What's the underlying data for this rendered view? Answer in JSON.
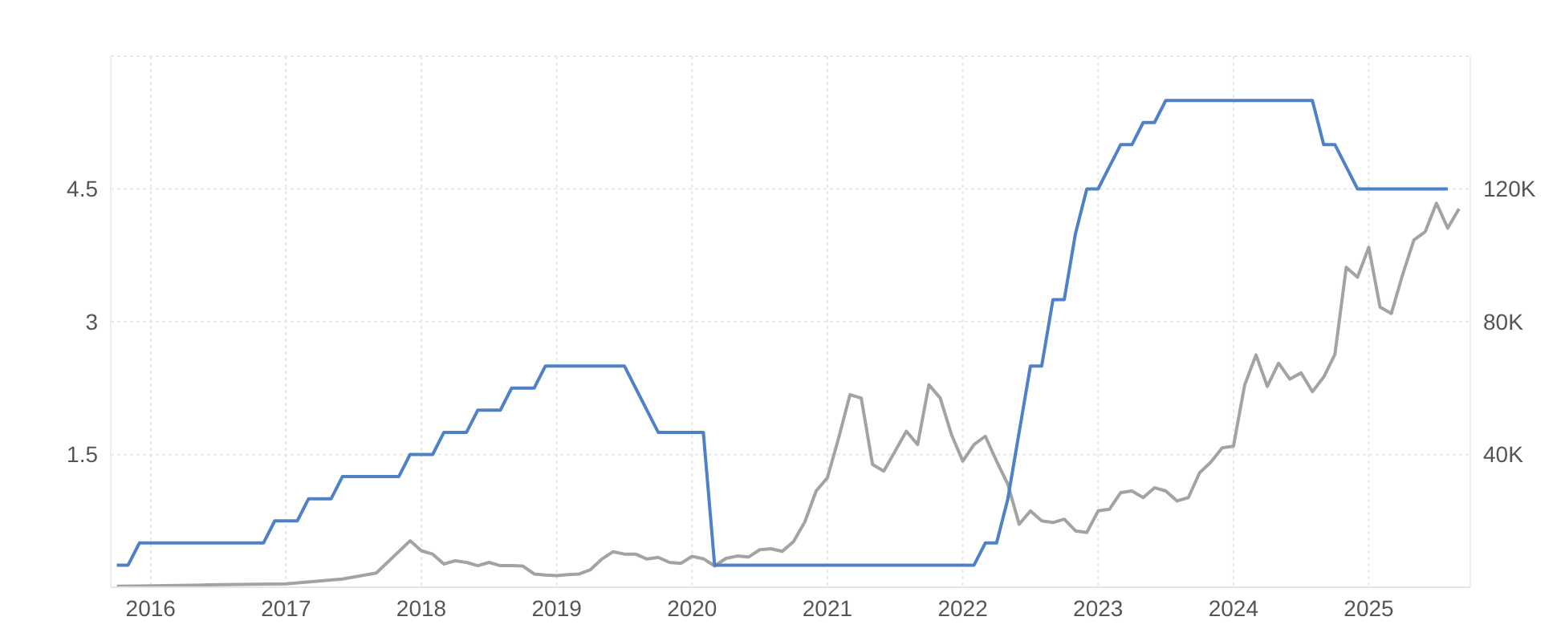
{
  "chart_data": {
    "type": "line",
    "xlim": [
      "2015-09-15",
      "2025-10-01"
    ],
    "xticks": [
      "2016",
      "2017",
      "2018",
      "2019",
      "2020",
      "2021",
      "2022",
      "2023",
      "2024",
      "2025"
    ],
    "ylim": [
      0,
      6
    ],
    "yticks": [
      1.5,
      3,
      4.5
    ],
    "y2lim": [
      0,
      160000
    ],
    "y2ticks": [
      {
        "value": 40000,
        "label": "40K"
      },
      {
        "value": 80000,
        "label": "80K"
      },
      {
        "value": 120000,
        "label": "120K"
      }
    ],
    "grid": true,
    "marker": "none",
    "series": [
      {
        "color": "#a3a3a3",
        "axis": "y2",
        "x": [
          "2015-10",
          "2016-01",
          "2016-06",
          "2017-01",
          "2017-06",
          "2017-09",
          "2017-12",
          "2018-01",
          "2018-02",
          "2018-03",
          "2018-04",
          "2018-05",
          "2018-06",
          "2018-07",
          "2018-08",
          "2018-09",
          "2018-10",
          "2018-11",
          "2018-12",
          "2019-01",
          "2019-02",
          "2019-03",
          "2019-04",
          "2019-05",
          "2019-06",
          "2019-07",
          "2019-08",
          "2019-09",
          "2019-10",
          "2019-11",
          "2019-12",
          "2020-01",
          "2020-02",
          "2020-03",
          "2020-04",
          "2020-05",
          "2020-06",
          "2020-07",
          "2020-08",
          "2020-09",
          "2020-10",
          "2020-11",
          "2020-12",
          "2021-01",
          "2021-02",
          "2021-03",
          "2021-04",
          "2021-05",
          "2021-06",
          "2021-07",
          "2021-08",
          "2021-09",
          "2021-10",
          "2021-11",
          "2021-12",
          "2022-01",
          "2022-02",
          "2022-03",
          "2022-04",
          "2022-05",
          "2022-06",
          "2022-07",
          "2022-08",
          "2022-09",
          "2022-10",
          "2022-11",
          "2022-12",
          "2023-01",
          "2023-02",
          "2023-03",
          "2023-04",
          "2023-05",
          "2023-06",
          "2023-07",
          "2023-08",
          "2023-09",
          "2023-10",
          "2023-11",
          "2023-12",
          "2024-01",
          "2024-02",
          "2024-03",
          "2024-04",
          "2024-05",
          "2024-06",
          "2024-07",
          "2024-08",
          "2024-09",
          "2024-10",
          "2024-11",
          "2024-12",
          "2025-01",
          "2025-02",
          "2025-03",
          "2025-04",
          "2025-05",
          "2025-06",
          "2025-07",
          "2025-08",
          "2025-09"
        ],
        "values": [
          300,
          400,
          700,
          1000,
          2500,
          4300,
          14000,
          11000,
          10000,
          7000,
          8000,
          7500,
          6500,
          7500,
          6500,
          6500,
          6400,
          4000,
          3700,
          3500,
          3800,
          4000,
          5300,
          8500,
          10700,
          10000,
          10000,
          8500,
          9000,
          7500,
          7200,
          9300,
          8600,
          6400,
          8700,
          9400,
          9100,
          11300,
          11600,
          10800,
          13800,
          19700,
          29000,
          33000,
          45000,
          58000,
          57000,
          37000,
          35000,
          41000,
          47000,
          43000,
          61000,
          57000,
          46000,
          38000,
          43000,
          45500,
          38000,
          31000,
          19000,
          23000,
          20000,
          19500,
          20500,
          17000,
          16500,
          23000,
          23500,
          28500,
          29000,
          27000,
          30000,
          29000,
          26000,
          27000,
          34500,
          37700,
          42000,
          42500,
          61000,
          70000,
          60500,
          67500,
          62700,
          64600,
          58900,
          63300,
          70200,
          96400,
          93400,
          102400,
          84400,
          82500,
          94200,
          104600,
          107100,
          115700,
          108200,
          114000
        ]
      },
      {
        "color": "#4f81c7",
        "x": [
          "2015-10",
          "2015-11",
          "2015-12",
          "2016-11",
          "2016-12",
          "2017-02",
          "2017-03",
          "2017-05",
          "2017-06",
          "2017-11",
          "2017-12",
          "2018-02",
          "2018-03",
          "2018-05",
          "2018-06",
          "2018-08",
          "2018-09",
          "2018-11",
          "2018-12",
          "2019-07",
          "2019-08",
          "2019-09",
          "2019-10",
          "2020-02",
          "2020-03",
          "2022-02",
          "2022-03",
          "2022-04",
          "2022-05",
          "2022-06",
          "2022-07",
          "2022-08",
          "2022-09",
          "2022-10",
          "2022-11",
          "2022-12",
          "2023-01",
          "2023-02",
          "2023-03",
          "2023-04",
          "2023-05",
          "2023-06",
          "2023-07",
          "2024-08",
          "2024-09",
          "2024-10",
          "2024-11",
          "2024-12",
          "2025-08"
        ],
        "values": [
          0.25,
          0.25,
          0.5,
          0.5,
          0.75,
          0.75,
          1.0,
          1.0,
          1.25,
          1.25,
          1.5,
          1.5,
          1.75,
          1.75,
          2.0,
          2.0,
          2.25,
          2.25,
          2.5,
          2.5,
          2.25,
          2.0,
          1.75,
          1.75,
          0.25,
          0.25,
          0.5,
          0.5,
          1.0,
          1.75,
          2.5,
          2.5,
          3.25,
          3.25,
          4.0,
          4.5,
          4.5,
          4.75,
          5.0,
          5.0,
          5.25,
          5.25,
          5.5,
          5.5,
          5.0,
          5.0,
          4.75,
          4.5,
          4.5
        ]
      }
    ]
  }
}
